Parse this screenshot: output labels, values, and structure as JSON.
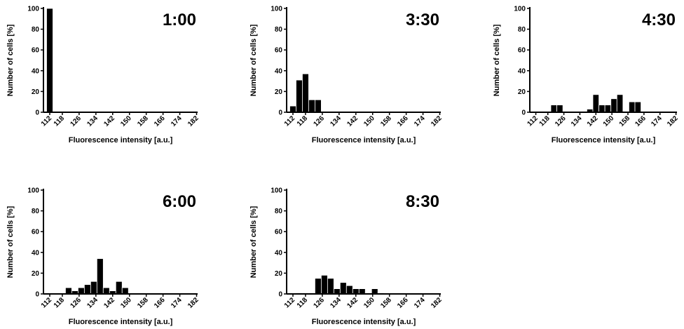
{
  "chart_data": [
    {
      "type": "bar",
      "title": "1:00",
      "xlabel": "Fluorescence intensity [a.u.]",
      "ylabel": "Number of cells [%]",
      "ylim": [
        0,
        100
      ],
      "yticks": [
        "0",
        "20",
        "40",
        "60",
        "80",
        "100"
      ],
      "xticks": [
        "112",
        "118",
        "126",
        "134",
        "142",
        "150",
        "158",
        "166",
        "174",
        "182"
      ],
      "bin_width": 3,
      "x": [
        112,
        115,
        118,
        121,
        124,
        127,
        130,
        133,
        136,
        139,
        142,
        145,
        148,
        151,
        154,
        157,
        160,
        163,
        166,
        169,
        172,
        175,
        178,
        181
      ],
      "values": [
        100,
        0,
        0,
        0,
        0,
        0,
        0,
        0,
        0,
        0,
        0,
        0,
        0,
        0,
        0,
        0,
        0,
        0,
        0,
        0,
        0,
        0,
        0,
        0
      ]
    },
    {
      "type": "bar",
      "title": "3:30",
      "xlabel": "Fluorescence intensity [a.u.]",
      "ylabel": "Number of cells [%]",
      "ylim": [
        0,
        100
      ],
      "yticks": [
        "0",
        "20",
        "40",
        "60",
        "80",
        "100"
      ],
      "xticks": [
        "112",
        "118",
        "126",
        "134",
        "142",
        "150",
        "158",
        "166",
        "174",
        "182"
      ],
      "bin_width": 3,
      "x": [
        112,
        115,
        118,
        121,
        124,
        127,
        130,
        133,
        136,
        139,
        142,
        145,
        148,
        151,
        154,
        157,
        160,
        163,
        166,
        169,
        172,
        175,
        178,
        181
      ],
      "values": [
        6,
        31,
        37,
        12,
        12,
        0,
        0,
        0,
        0,
        0,
        0,
        0,
        0,
        0,
        0,
        0,
        0,
        0,
        0,
        0,
        0,
        0,
        0,
        0
      ]
    },
    {
      "type": "bar",
      "title": "4:30",
      "xlabel": "Fluorescence intensity [a.u.]",
      "ylabel": "Number of cells [%]",
      "ylim": [
        0,
        100
      ],
      "yticks": [
        "0",
        "20",
        "40",
        "60",
        "80",
        "100"
      ],
      "xticks": [
        "112",
        "118",
        "126",
        "134",
        "142",
        "150",
        "158",
        "166",
        "174",
        "182"
      ],
      "bin_width": 3,
      "x": [
        112,
        115,
        118,
        121,
        124,
        127,
        130,
        133,
        136,
        139,
        142,
        145,
        148,
        151,
        154,
        157,
        160,
        163,
        166,
        169,
        172,
        175,
        178,
        181
      ],
      "values": [
        0,
        0,
        0,
        7,
        7,
        0,
        0,
        0,
        0,
        3,
        17,
        7,
        7,
        13,
        17,
        0,
        10,
        10,
        0,
        0,
        0,
        0,
        0,
        0
      ]
    },
    {
      "type": "bar",
      "title": "6:00",
      "xlabel": "Fluorescence intensity [a.u.]",
      "ylabel": "Number of cells [%]",
      "ylim": [
        0,
        100
      ],
      "yticks": [
        "0",
        "20",
        "40",
        "60",
        "80",
        "100"
      ],
      "xticks": [
        "112",
        "118",
        "126",
        "134",
        "142",
        "150",
        "158",
        "166",
        "174",
        "182"
      ],
      "bin_width": 3,
      "x": [
        112,
        115,
        118,
        121,
        124,
        127,
        130,
        133,
        136,
        139,
        142,
        145,
        148,
        151,
        154,
        157,
        160,
        163,
        166,
        169,
        172,
        175,
        178,
        181
      ],
      "values": [
        0,
        0,
        0,
        6,
        3,
        6,
        9,
        12,
        34,
        6,
        3,
        12,
        6,
        0,
        0,
        0,
        0,
        0,
        0,
        0,
        0,
        0,
        0,
        0
      ]
    },
    {
      "type": "bar",
      "title": "8:30",
      "xlabel": "Fluorescence intensity [a.u.]",
      "ylabel": "Number of cells [%]",
      "ylim": [
        0,
        100
      ],
      "yticks": [
        "0",
        "20",
        "40",
        "60",
        "80",
        "100"
      ],
      "xticks": [
        "112",
        "118",
        "126",
        "134",
        "142",
        "150",
        "158",
        "166",
        "174",
        "182"
      ],
      "bin_width": 3,
      "x": [
        112,
        115,
        118,
        121,
        124,
        127,
        130,
        133,
        136,
        139,
        142,
        145,
        148,
        151,
        154,
        157,
        160,
        163,
        166,
        169,
        172,
        175,
        178,
        181
      ],
      "values": [
        0,
        1,
        1,
        1,
        15,
        18,
        15,
        5,
        11,
        8,
        5,
        5,
        1,
        5,
        1,
        0,
        0,
        0,
        0,
        0,
        0,
        0,
        0,
        0
      ]
    }
  ]
}
